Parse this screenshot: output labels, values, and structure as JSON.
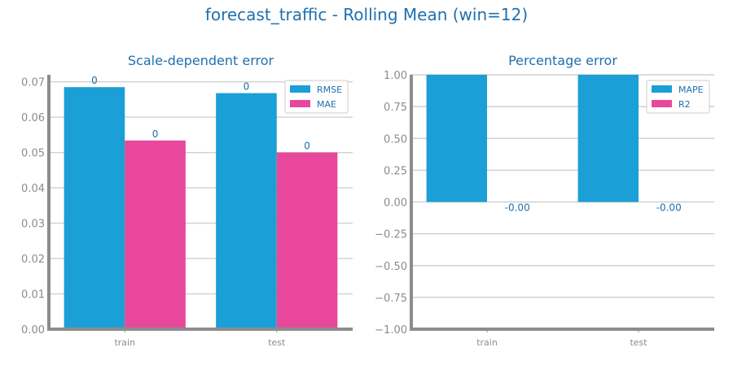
{
  "figure": {
    "title": "forecast_traffic - Rolling Mean (win=12)"
  },
  "colors": {
    "title": "#1f6fae",
    "tick_label": "#8c8c8c",
    "axis_spine": "#8c8c8c",
    "grid": "#d0d0d0",
    "data_label": "#1f6fae",
    "legend_text": "#1f6fae",
    "legend_border": "#cccccc"
  },
  "chart_data": [
    {
      "type": "bar",
      "title": "Scale-dependent error",
      "xlabel": "",
      "ylabel": "",
      "categories": [
        "train",
        "test"
      ],
      "series": [
        {
          "name": "RMSE",
          "values": [
            0.0685,
            0.0668
          ],
          "labels": [
            "0",
            "0"
          ],
          "color": "#1a9fd6"
        },
        {
          "name": "MAE",
          "values": [
            0.0534,
            0.05
          ],
          "labels": [
            "0",
            "0"
          ],
          "color": "#e9479b"
        }
      ],
      "ylim": [
        0,
        0.072
      ],
      "yticks": [
        0.0,
        0.01,
        0.02,
        0.03,
        0.04,
        0.05,
        0.06,
        0.07
      ],
      "ytick_labels": [
        "0.00",
        "0.01",
        "0.02",
        "0.03",
        "0.04",
        "0.05",
        "0.06",
        "0.07"
      ],
      "grid": true,
      "legend": "top-right"
    },
    {
      "type": "bar",
      "title": "Percentage error",
      "xlabel": "",
      "ylabel": "",
      "categories": [
        "train",
        "test"
      ],
      "series": [
        {
          "name": "MAPE",
          "values": [
            1.0,
            1.0
          ],
          "labels": [
            "",
            ""
          ],
          "color": "#1a9fd6"
        },
        {
          "name": "R2",
          "values": [
            0.0,
            0.0
          ],
          "labels": [
            "-0.00",
            "-0.00"
          ],
          "color": "#e9479b"
        }
      ],
      "ylim": [
        -1.0,
        1.0
      ],
      "yticks": [
        -1.0,
        -0.75,
        -0.5,
        -0.25,
        0.0,
        0.25,
        0.5,
        0.75,
        1.0
      ],
      "ytick_labels": [
        "−1.00",
        "−0.75",
        "−0.50",
        "−0.25",
        "0.00",
        "0.25",
        "0.50",
        "0.75",
        "1.00"
      ],
      "grid": true,
      "legend": "top-right"
    }
  ]
}
